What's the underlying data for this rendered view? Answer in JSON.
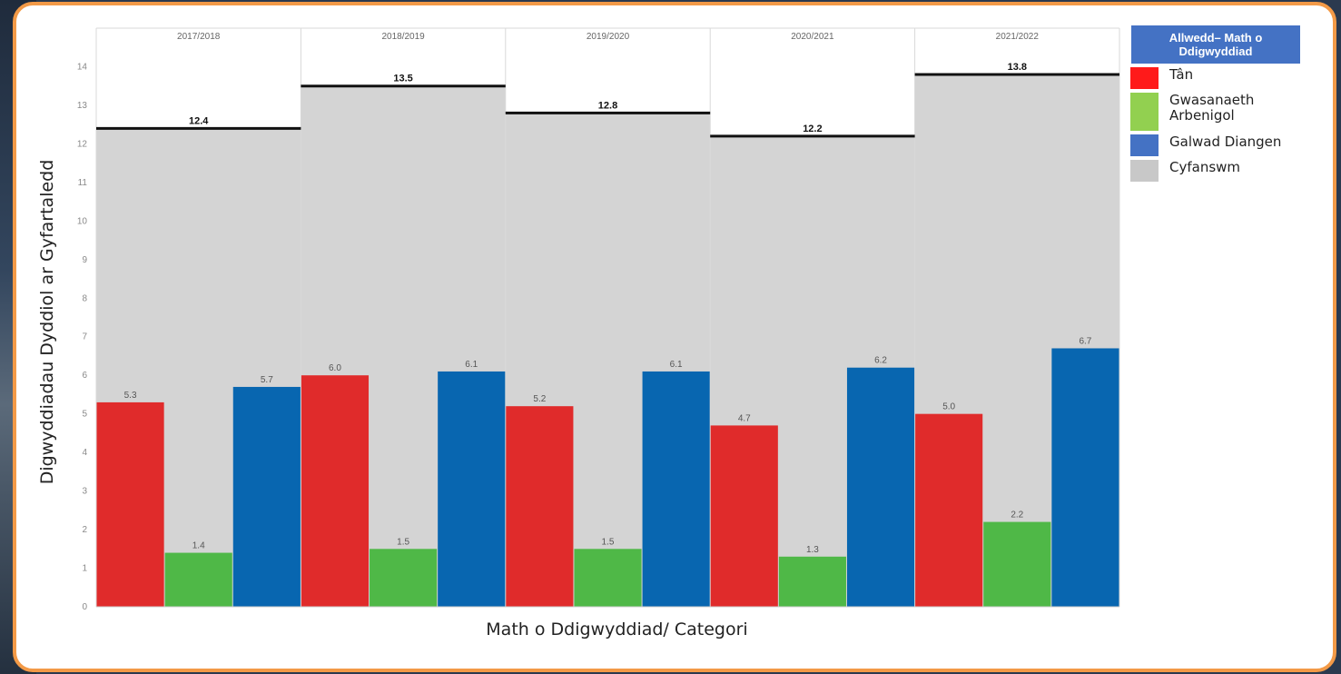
{
  "chart_data": {
    "type": "bar",
    "categories": [
      "2017/2018",
      "2018/2019",
      "2019/2020",
      "2020/2021",
      "2021/2022"
    ],
    "series": [
      {
        "name": "Tân",
        "color": "#e02b2b",
        "values": [
          5.3,
          6.0,
          5.2,
          4.7,
          5.0
        ],
        "labels": [
          "5.3",
          "6.0",
          "5.2",
          "4.7",
          "5.0"
        ]
      },
      {
        "name": "Gwasanaeth Arbenigol",
        "color": "#4fb847",
        "values": [
          1.4,
          1.5,
          1.5,
          1.3,
          2.2
        ],
        "labels": [
          "1.4",
          "1.5",
          "1.5",
          "1.3",
          "2.2"
        ]
      },
      {
        "name": "Galwad Diangen",
        "color": "#0866b0",
        "values": [
          5.7,
          6.1,
          6.1,
          6.2,
          6.7
        ],
        "labels": [
          "5.7",
          "6.1",
          "6.1",
          "6.2",
          "6.7"
        ]
      }
    ],
    "total": {
      "name": "Cyfanswm",
      "color": "#d4d4d4",
      "values": [
        12.4,
        13.5,
        12.8,
        12.2,
        13.8
      ],
      "labels": [
        "12.4",
        "13.5",
        "12.8",
        "12.2",
        "13.8"
      ]
    },
    "xlabel": "Math o Ddigwyddiad/ Categori",
    "ylabel": "Digwyddiadau Dyddiol ar Gyfartaledd",
    "ylim": [
      0,
      15
    ],
    "yticks": [
      0,
      1,
      2,
      3,
      4,
      5,
      6,
      7,
      8,
      9,
      10,
      11,
      12,
      13,
      14
    ],
    "grid": false,
    "legend_position": "right"
  },
  "legend": {
    "title": "Allwedd– Math o Ddigwyddiad",
    "items": [
      {
        "label": "Tân",
        "color": "#ff1a1a"
      },
      {
        "label": "Gwasanaeth Arbenigol",
        "color": "#92d050"
      },
      {
        "label": "Galwad Diangen",
        "color": "#4472c4"
      },
      {
        "label": "Cyfanswm",
        "color": "#c8c8c8"
      }
    ]
  }
}
